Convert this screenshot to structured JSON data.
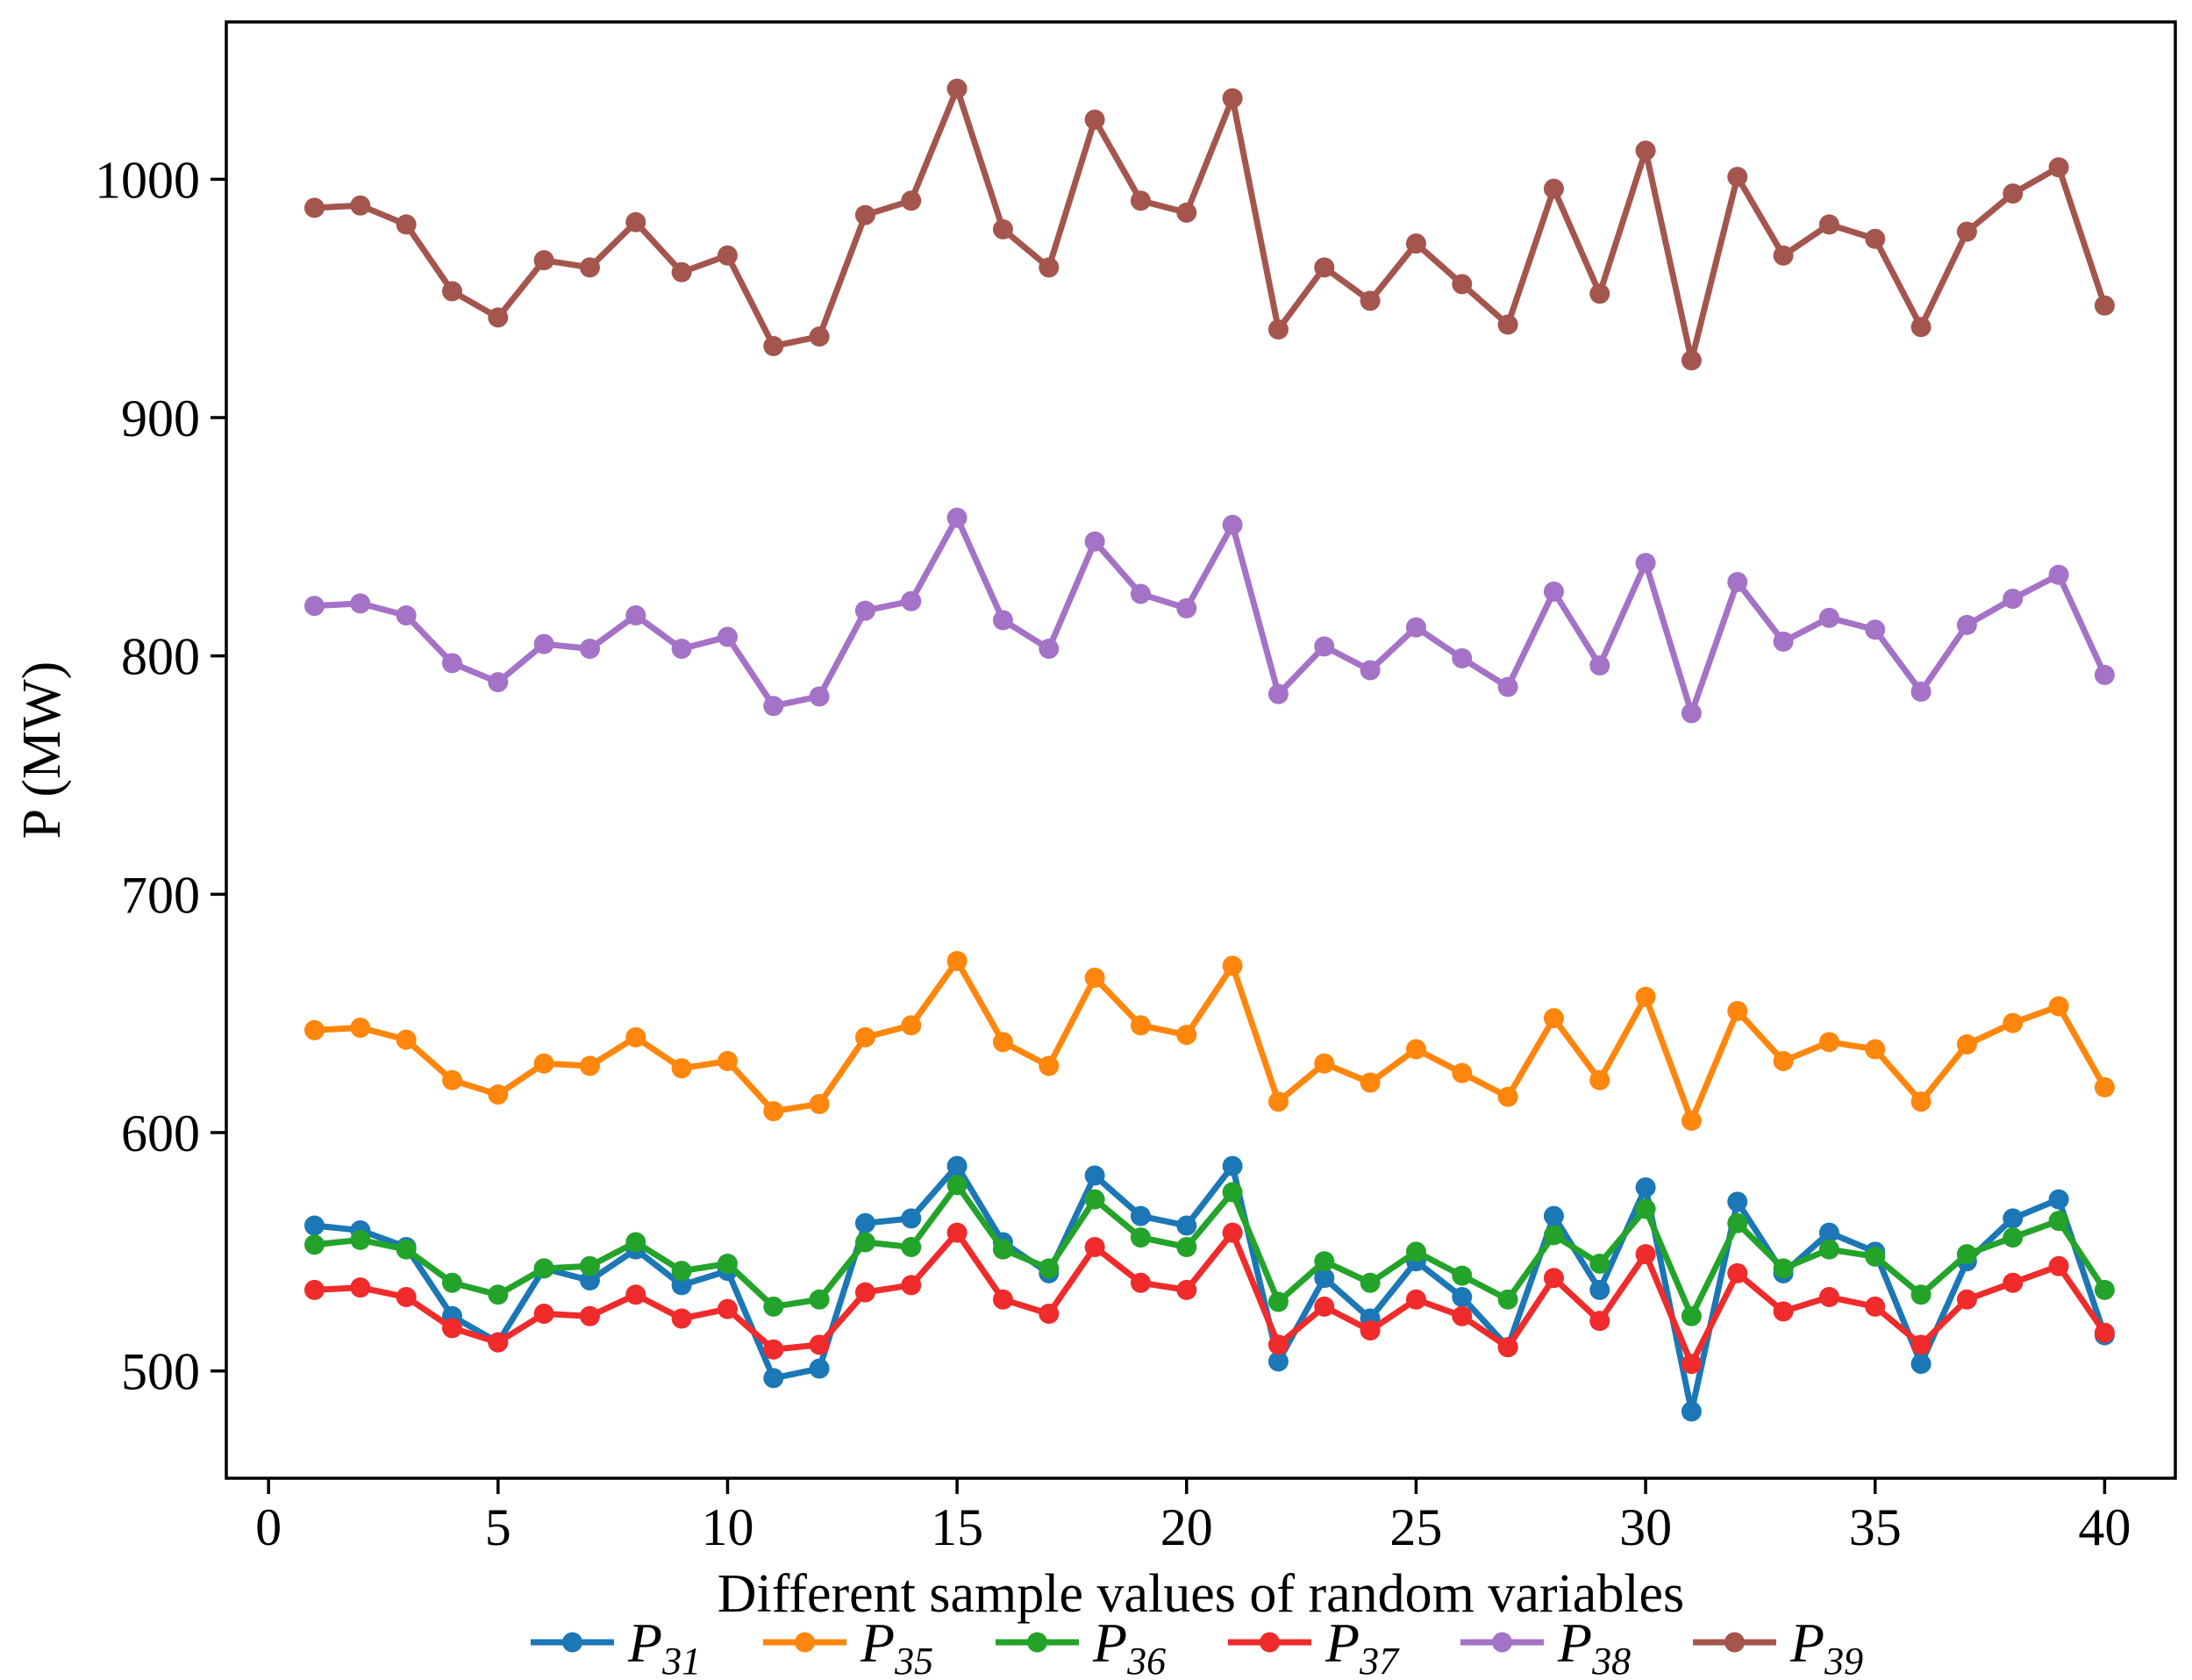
{
  "figure": {
    "background": "#ffffff",
    "spine_color": "#000000"
  },
  "chart_data": {
    "type": "line",
    "title": "",
    "xlabel": "Different sample values of random variables",
    "ylabel": "P (MW)",
    "grid": false,
    "legend_position": "bottom",
    "x": [
      1,
      2,
      3,
      4,
      5,
      6,
      7,
      8,
      9,
      10,
      11,
      12,
      13,
      14,
      15,
      16,
      17,
      18,
      19,
      20,
      21,
      22,
      23,
      24,
      25,
      26,
      27,
      28,
      29,
      30,
      31,
      32,
      33,
      34,
      35,
      36,
      37,
      38,
      39,
      40
    ],
    "xlim": [
      -0.92,
      41.54
    ],
    "ylim": [
      455,
      1066
    ],
    "xticks": [
      0,
      5,
      10,
      15,
      20,
      25,
      30,
      35,
      40
    ],
    "yticks": [
      500,
      600,
      700,
      800,
      900,
      1000
    ],
    "series": [
      {
        "name": "P31",
        "label_main": "P",
        "label_sub": "31",
        "color": "#1b77b6",
        "values": [
          561,
          559,
          552,
          523,
          512,
          543,
          538,
          551,
          536,
          542,
          497,
          501,
          562,
          564,
          586,
          554,
          541,
          582,
          565,
          561,
          586,
          504,
          539,
          522,
          546,
          531,
          510,
          565,
          534,
          577,
          483,
          571,
          541,
          558,
          550,
          503,
          546,
          564,
          572,
          515
        ]
      },
      {
        "name": "P35",
        "label_main": "P",
        "label_sub": "35",
        "color": "#ff860d",
        "values": [
          643,
          644,
          639,
          622,
          616,
          629,
          628,
          640,
          627,
          630,
          609,
          612,
          640,
          645,
          672,
          638,
          628,
          665,
          645,
          641,
          670,
          613,
          629,
          621,
          635,
          625,
          615,
          648,
          622,
          657,
          605,
          651,
          630,
          638,
          635,
          613,
          637,
          646,
          653,
          619
        ]
      },
      {
        "name": "P36",
        "label_main": "P",
        "label_sub": "36",
        "color": "#24a32a",
        "values": [
          553,
          555,
          551,
          537,
          532,
          543,
          544,
          554,
          542,
          545,
          527,
          530,
          554,
          552,
          578,
          551,
          543,
          572,
          556,
          552,
          575,
          529,
          546,
          537,
          550,
          540,
          530,
          557,
          545,
          568,
          523,
          562,
          543,
          551,
          548,
          532,
          549,
          556,
          563,
          534
        ]
      },
      {
        "name": "P37",
        "label_main": "P",
        "label_sub": "37",
        "color": "#ef2b2b",
        "values": [
          534,
          535,
          531,
          518,
          512,
          524,
          523,
          532,
          522,
          526,
          509,
          511,
          533,
          536,
          558,
          530,
          524,
          552,
          537,
          534,
          558,
          511,
          527,
          517,
          530,
          523,
          510,
          539,
          521,
          549,
          503,
          541,
          525,
          531,
          527,
          511,
          530,
          537,
          544,
          516
        ]
      },
      {
        "name": "P38",
        "label_main": "P",
        "label_sub": "38",
        "color": "#a472c6",
        "values": [
          821,
          822,
          817,
          797,
          789,
          805,
          803,
          817,
          803,
          808,
          779,
          783,
          819,
          823,
          858,
          815,
          803,
          848,
          826,
          820,
          855,
          784,
          804,
          794,
          812,
          799,
          787,
          827,
          796,
          839,
          776,
          831,
          806,
          816,
          811,
          785,
          813,
          824,
          834,
          792
        ]
      },
      {
        "name": "P39",
        "label_main": "P",
        "label_sub": "39",
        "color": "#a4554d",
        "values": [
          988,
          989,
          981,
          953,
          942,
          966,
          963,
          982,
          961,
          968,
          930,
          934,
          985,
          991,
          1038,
          979,
          963,
          1025,
          991,
          986,
          1034,
          937,
          963,
          949,
          973,
          956,
          939,
          996,
          952,
          1012,
          924,
          1001,
          968,
          981,
          975,
          938,
          978,
          994,
          1005,
          947
        ]
      }
    ]
  },
  "layout_text": {
    "note": "all visible text of the figure comes from chart_data above"
  }
}
